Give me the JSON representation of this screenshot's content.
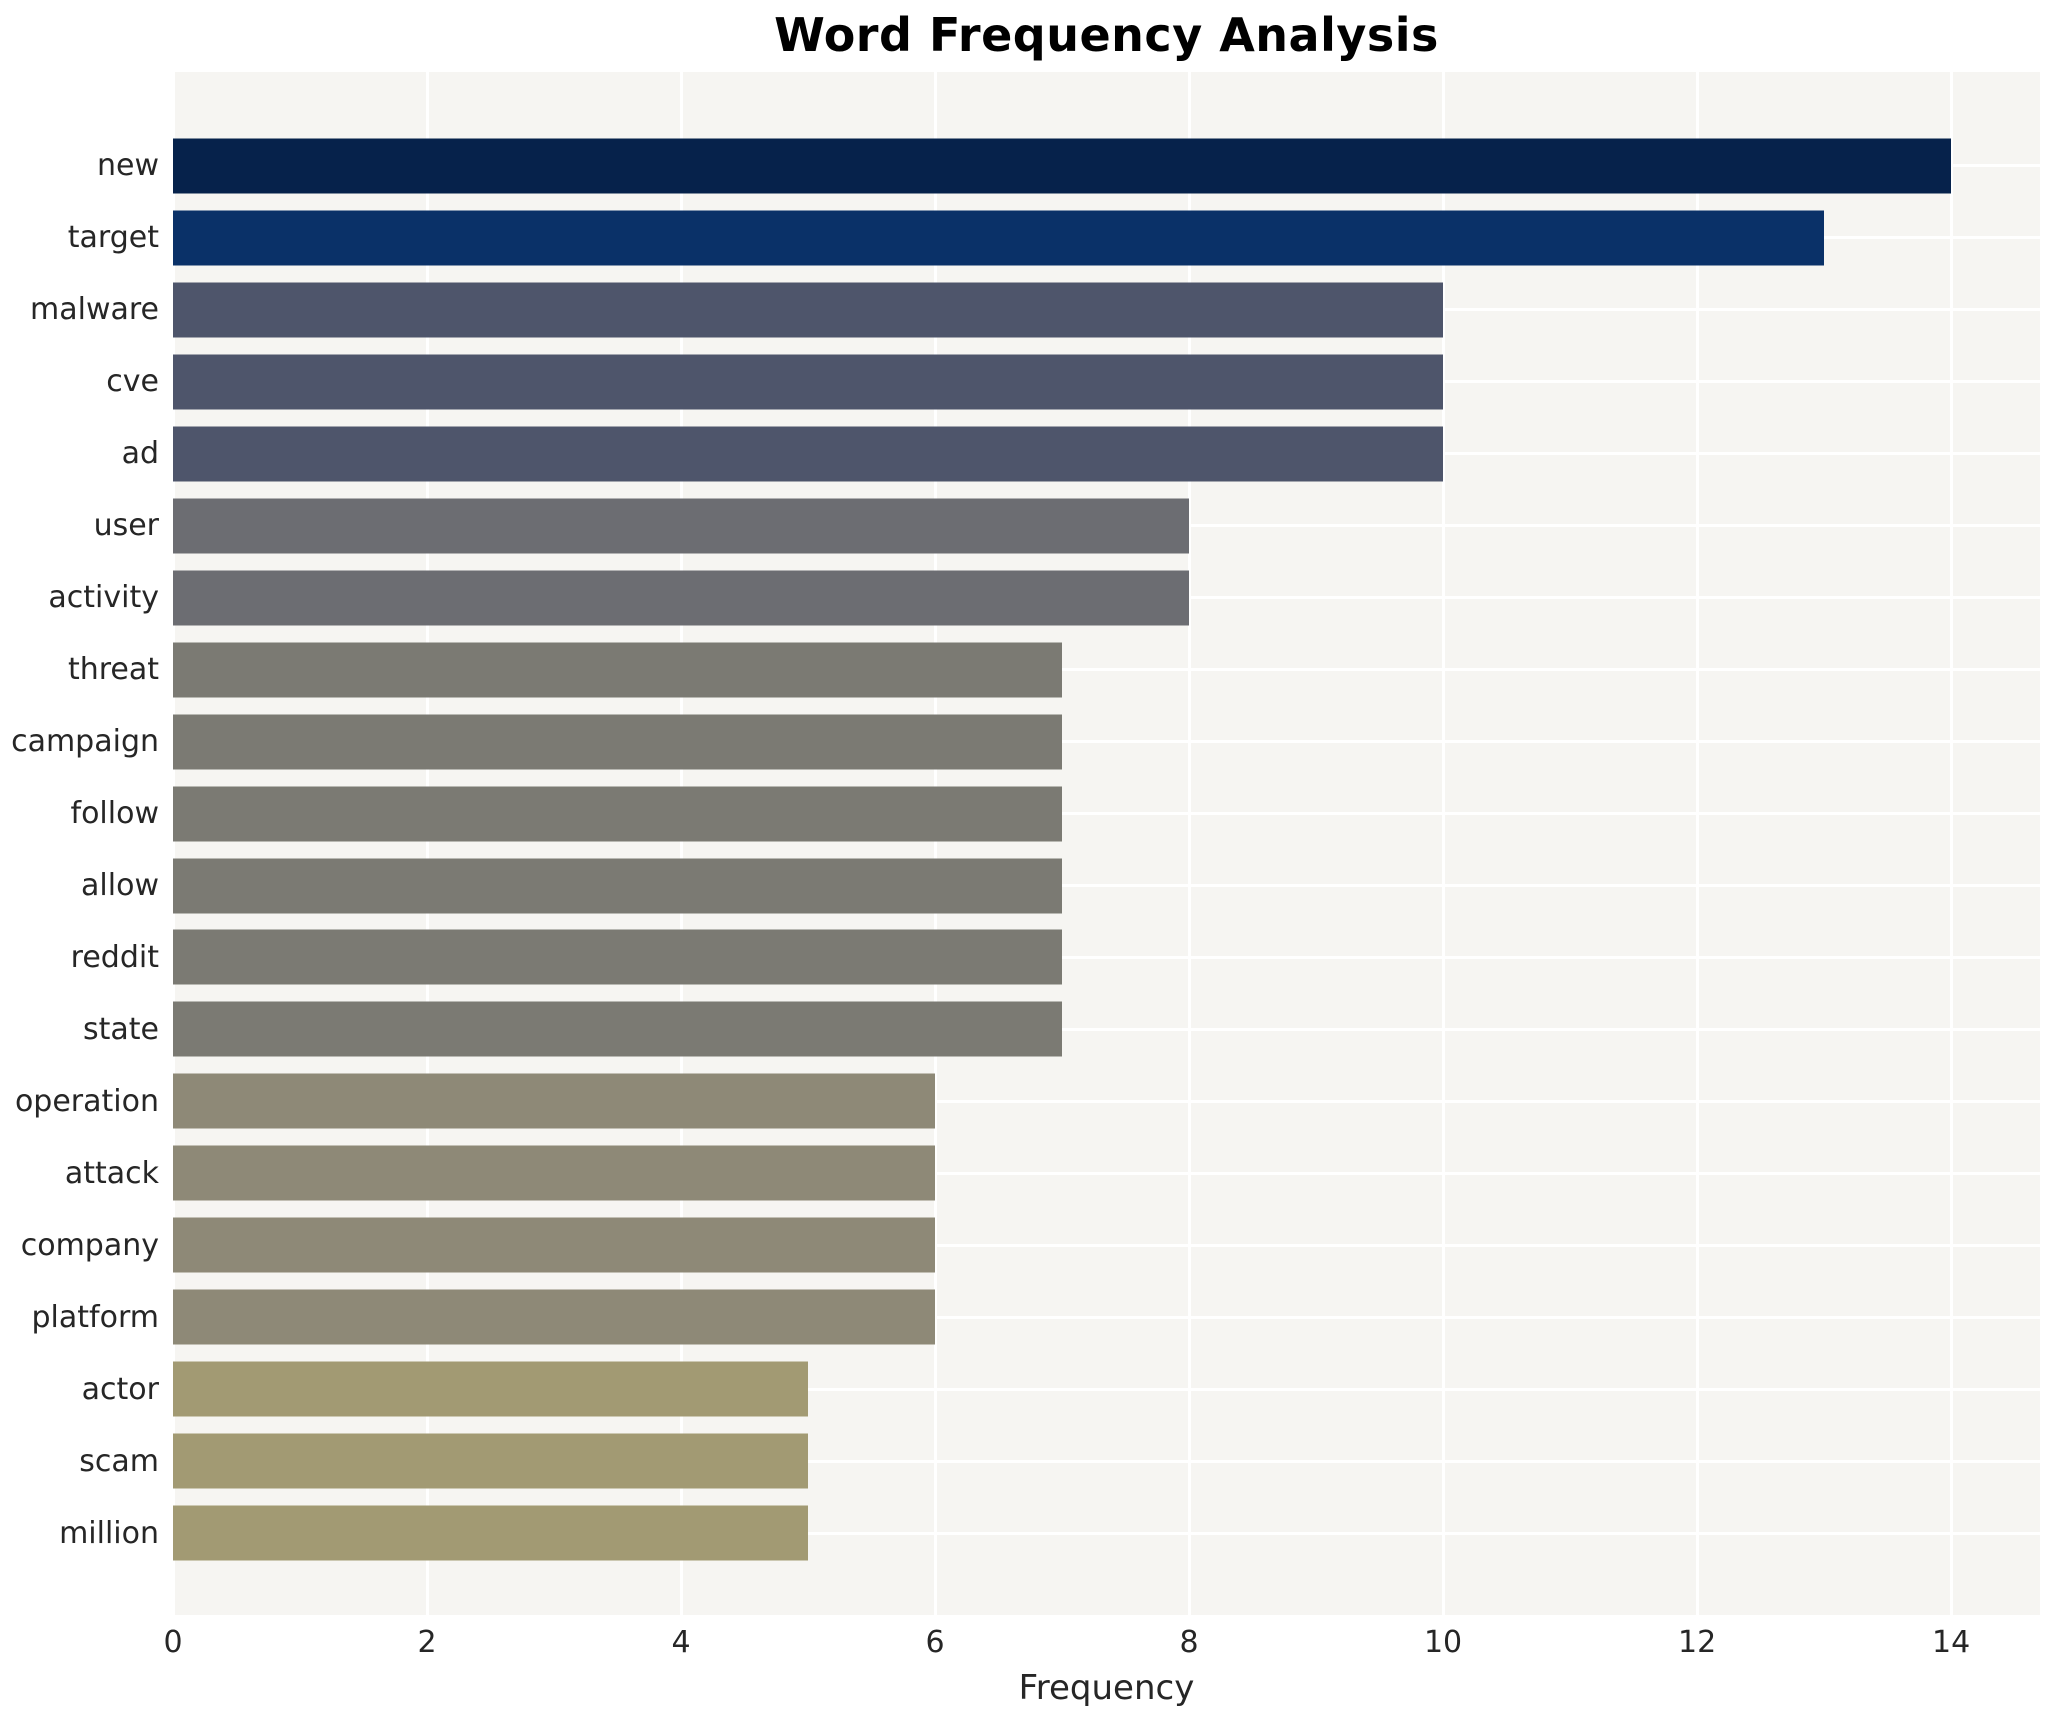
{
  "chart_data": {
    "type": "bar",
    "orientation": "horizontal",
    "title": "Word Frequency Analysis",
    "xlabel": "Frequency",
    "ylabel": "",
    "categories": [
      "new",
      "target",
      "malware",
      "cve",
      "ad",
      "user",
      "activity",
      "threat",
      "campaign",
      "follow",
      "allow",
      "reddit",
      "state",
      "operation",
      "attack",
      "company",
      "platform",
      "actor",
      "scam",
      "million"
    ],
    "values": [
      14,
      13,
      10,
      10,
      10,
      8,
      8,
      7,
      7,
      7,
      7,
      7,
      7,
      6,
      6,
      6,
      6,
      5,
      5,
      5
    ],
    "bar_colors": [
      "#06224b",
      "#0a3168",
      "#4e556b",
      "#4e556b",
      "#4e556b",
      "#6c6d72",
      "#6c6d72",
      "#7b7a73",
      "#7b7a73",
      "#7b7a73",
      "#7b7a73",
      "#7b7a73",
      "#7b7a73",
      "#8e8977",
      "#8e8977",
      "#8e8977",
      "#8e8977",
      "#a29a73",
      "#a29a73",
      "#a29a73"
    ],
    "xlim": [
      0,
      14.7
    ],
    "xticks": [
      0,
      2,
      4,
      6,
      8,
      10,
      12,
      14
    ],
    "grid": "white gridlines on light gray panel",
    "legend_position": "none",
    "panel_color": "#f6f5f2",
    "grid_color": "#ffffff",
    "text_color": "#262626"
  }
}
